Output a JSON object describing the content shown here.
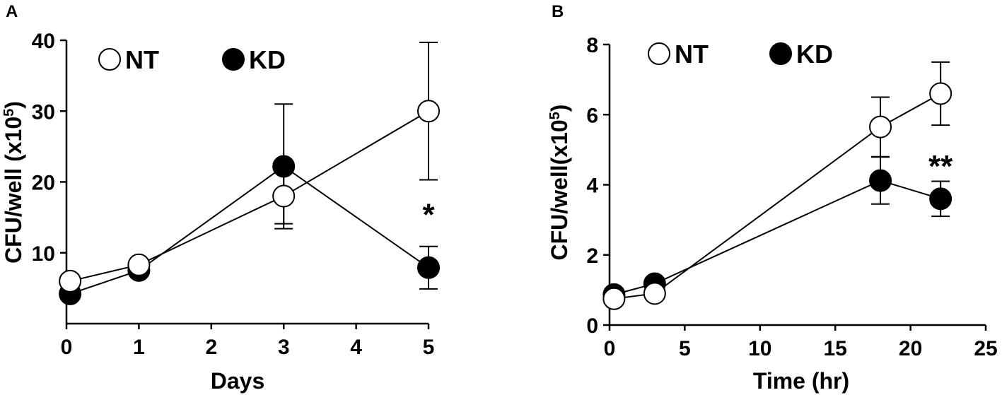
{
  "chart_data": [
    {
      "panel": "A",
      "type": "line",
      "xlabel": "Days",
      "ylabel": "CFU/well (x10",
      "ylabel_sup": "5",
      "ylabel_close": ")",
      "xlim": [
        0,
        5
      ],
      "ylim": [
        0,
        40
      ],
      "xticks": [
        0,
        1,
        2,
        3,
        4,
        5
      ],
      "yticks": [
        10,
        20,
        30,
        40
      ],
      "grid": false,
      "legend_position": "top-left",
      "series": [
        {
          "name": "NT",
          "marker": "open-circle",
          "x": [
            0.05,
            1,
            3,
            5
          ],
          "y": [
            6,
            8.3,
            18,
            30
          ],
          "err": [
            0,
            0,
            3.9,
            9.7
          ]
        },
        {
          "name": "KD",
          "marker": "filled-circle",
          "x": [
            0.05,
            1,
            3,
            5
          ],
          "y": [
            4.2,
            7.5,
            22.2,
            7.9
          ],
          "err": [
            0,
            0,
            8.8,
            3
          ]
        }
      ],
      "annotations": [
        {
          "text": "*",
          "x": 5,
          "y": 15.5
        }
      ]
    },
    {
      "panel": "B",
      "type": "line",
      "xlabel": "Time (hr)",
      "ylabel": "CFU/well(x10",
      "ylabel_sup": "5",
      "ylabel_close": ")",
      "xlim": [
        0,
        25
      ],
      "ylim": [
        0,
        8
      ],
      "xticks": [
        0,
        5,
        10,
        15,
        20,
        25
      ],
      "yticks": [
        0,
        2,
        4,
        6,
        8
      ],
      "grid": false,
      "legend_position": "top-left",
      "series": [
        {
          "name": "NT",
          "marker": "open-circle",
          "x": [
            0.3,
            3,
            18,
            22
          ],
          "y": [
            0.75,
            0.9,
            5.65,
            6.6
          ],
          "err": [
            0,
            0,
            0.85,
            0.9
          ]
        },
        {
          "name": "KD",
          "marker": "filled-circle",
          "x": [
            0.3,
            3,
            18,
            22
          ],
          "y": [
            0.87,
            1.18,
            4.12,
            3.6
          ],
          "err": [
            0,
            0,
            0.67,
            0.5
          ]
        }
      ],
      "annotations": [
        {
          "text": "**",
          "x": 22,
          "y": 4.55
        }
      ]
    }
  ]
}
